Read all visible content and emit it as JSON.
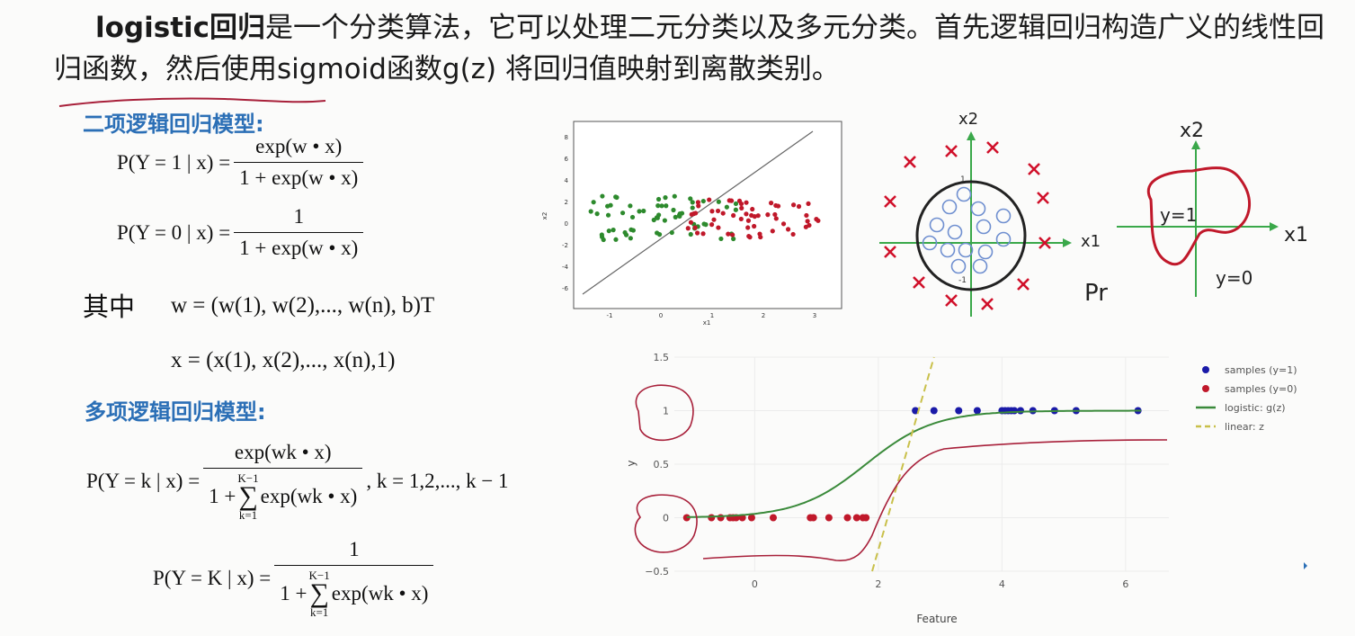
{
  "intro": {
    "keyword": "logistic回归",
    "text": "是一个分类算法，它可以处理二元分类以及多元分类。首先逻辑回归构造广义的线性回归函数，然后使用sigmoid函数g(z) 将回归值映射到离散类别。"
  },
  "binary": {
    "title": "二项逻辑回归模型:",
    "p1_lhs": "P(Y = 1 | x) =",
    "p1_num": "exp(w • x)",
    "p1_den": "1 + exp(w • x)",
    "p0_lhs": "P(Y = 0 | x) =",
    "p0_num": "1",
    "p0_den": "1 + exp(w • x)",
    "where_label": "其中",
    "w_def": "w = (w(1), w(2),..., w(n), b)T",
    "x_def": "x = (x(1), x(2),..., x(n),1)"
  },
  "multi": {
    "title": "多项逻辑回归模型:",
    "pk_lhs": "P(Y = k | x) =",
    "pk_num": "exp(wk • x)",
    "pk_den_pre": "1 +",
    "pk_den_sum_top": "K−1",
    "pk_den_sum_bot": "k=1",
    "pk_den_post": "exp(wk • x)",
    "pk_cond": ", k = 1,2,..., k − 1",
    "pK_lhs": "P(Y = K | x) =",
    "pK_num": "1"
  },
  "scatter": {
    "xlabel": "x1",
    "ylabel": "x2",
    "xticks": [
      "-1",
      "0",
      "1",
      "2",
      "3"
    ],
    "yticks": [
      "8",
      "6",
      "4",
      "2",
      "0",
      "-2",
      "-4",
      "-6"
    ]
  },
  "circle_diagram": {
    "x_axis": "x1",
    "y_axis": "x2",
    "tick_pos": "1",
    "tick_neg": "-1",
    "annotation": "Pr"
  },
  "blob_diagram": {
    "x_axis": "x1",
    "y_axis": "x2",
    "inside_label": "y=1",
    "outside_label": "y=0"
  },
  "chart_data": {
    "type": "scatter",
    "xlabel": "Feature",
    "ylabel": "y",
    "xticks": [
      "0",
      "2",
      "4",
      "6"
    ],
    "yticks": [
      "1.5",
      "1",
      "0.5",
      "0",
      "−0.5"
    ],
    "xlim": [
      -1.3,
      6.7
    ],
    "ylim": [
      -0.5,
      1.5
    ],
    "legend_position": "top-right",
    "series": [
      {
        "name": "samples (y=1)",
        "color": "#1a1aa8",
        "x": [
          2.6,
          2.9,
          3.3,
          3.6,
          4.0,
          4.05,
          4.1,
          4.15,
          4.2,
          4.3,
          4.5,
          4.85,
          5.2,
          6.2
        ],
        "y": [
          1,
          1,
          1,
          1,
          1,
          1,
          1,
          1,
          1,
          1,
          1,
          1,
          1,
          1
        ]
      },
      {
        "name": "samples (y=0)",
        "color": "#c0182a",
        "x": [
          -1.1,
          -0.7,
          -0.55,
          -0.4,
          -0.35,
          -0.3,
          -0.2,
          -0.05,
          0.3,
          0.9,
          0.95,
          1.2,
          1.5,
          1.65,
          1.75,
          1.8
        ],
        "y": [
          0,
          0,
          0,
          0,
          0,
          0,
          0,
          0,
          0,
          0,
          0,
          0,
          0,
          0,
          0,
          0
        ]
      },
      {
        "name": "logistic: g(z)",
        "color": "#3a8a3a",
        "kind": "sigmoid",
        "center": 1.8,
        "scale": 0.55
      },
      {
        "name": "linear: z",
        "color": "#c9c04a",
        "kind": "line",
        "x": [
          1.9,
          2.9
        ],
        "y": [
          -0.5,
          1.5
        ]
      }
    ]
  },
  "colors": {
    "heading_blue": "#2b6fb6",
    "cross_red": "#d0102a",
    "circle_blue": "#6f8fd0",
    "axis_green": "#3aa84a",
    "ink_red": "#a8203a"
  }
}
